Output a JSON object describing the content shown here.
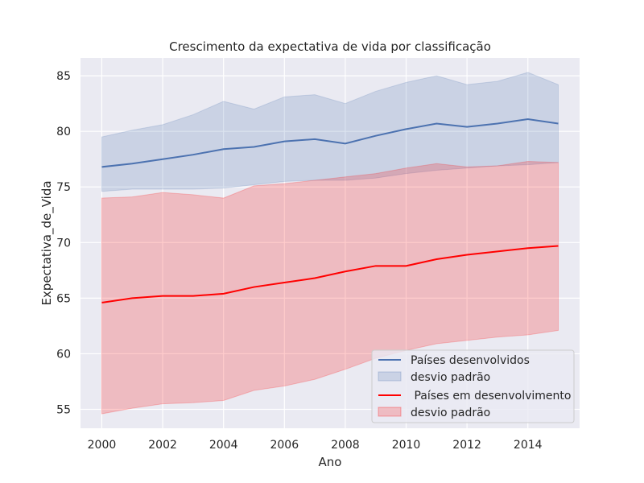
{
  "chart_data": {
    "type": "line",
    "title": "Crescimento da expectativa de vida por classificação",
    "xlabel": "Ano",
    "ylabel": "Expectativa_de_Vida",
    "xlim": [
      1999.3,
      2015.7
    ],
    "ylim": [
      53.3,
      86.6
    ],
    "xticks": [
      2000,
      2002,
      2004,
      2006,
      2008,
      2010,
      2012,
      2014
    ],
    "yticks": [
      55,
      60,
      65,
      70,
      75,
      80,
      85
    ],
    "grid": true,
    "legend_position": "lower-right",
    "x": [
      2000,
      2001,
      2002,
      2003,
      2004,
      2005,
      2006,
      2007,
      2008,
      2009,
      2010,
      2011,
      2012,
      2013,
      2014,
      2015
    ],
    "series": [
      {
        "name": "Países desenvolvidos",
        "band_name": "desvio padrão",
        "color": "#4c72b0",
        "values": [
          76.8,
          77.1,
          77.5,
          77.9,
          78.4,
          78.6,
          79.1,
          79.3,
          78.9,
          79.6,
          80.2,
          80.7,
          80.4,
          80.7,
          81.1,
          80.7
        ],
        "upper": [
          79.5,
          80.1,
          80.6,
          81.5,
          82.7,
          82.0,
          83.1,
          83.3,
          82.5,
          83.6,
          84.4,
          85.0,
          84.2,
          84.5,
          85.3,
          84.2
        ],
        "lower": [
          74.6,
          74.8,
          74.8,
          74.8,
          74.9,
          75.2,
          75.5,
          75.6,
          75.6,
          75.8,
          76.2,
          76.5,
          76.7,
          76.9,
          77.0,
          77.2
        ]
      },
      {
        "name": " Países em desenvolvimento",
        "band_name": "desvio padrão",
        "color": "#ff0000",
        "values": [
          64.6,
          65.0,
          65.2,
          65.2,
          65.4,
          66.0,
          66.4,
          66.8,
          67.4,
          67.9,
          67.9,
          68.5,
          68.9,
          69.2,
          69.5,
          69.7
        ],
        "upper": [
          74.0,
          74.1,
          74.5,
          74.3,
          74.0,
          75.1,
          75.3,
          75.6,
          75.9,
          76.2,
          76.7,
          77.1,
          76.8,
          76.9,
          77.3,
          77.2
        ],
        "lower": [
          54.6,
          55.1,
          55.5,
          55.6,
          55.8,
          56.7,
          57.1,
          57.7,
          58.6,
          59.6,
          60.3,
          60.9,
          61.2,
          61.5,
          61.7,
          62.1
        ]
      }
    ]
  }
}
